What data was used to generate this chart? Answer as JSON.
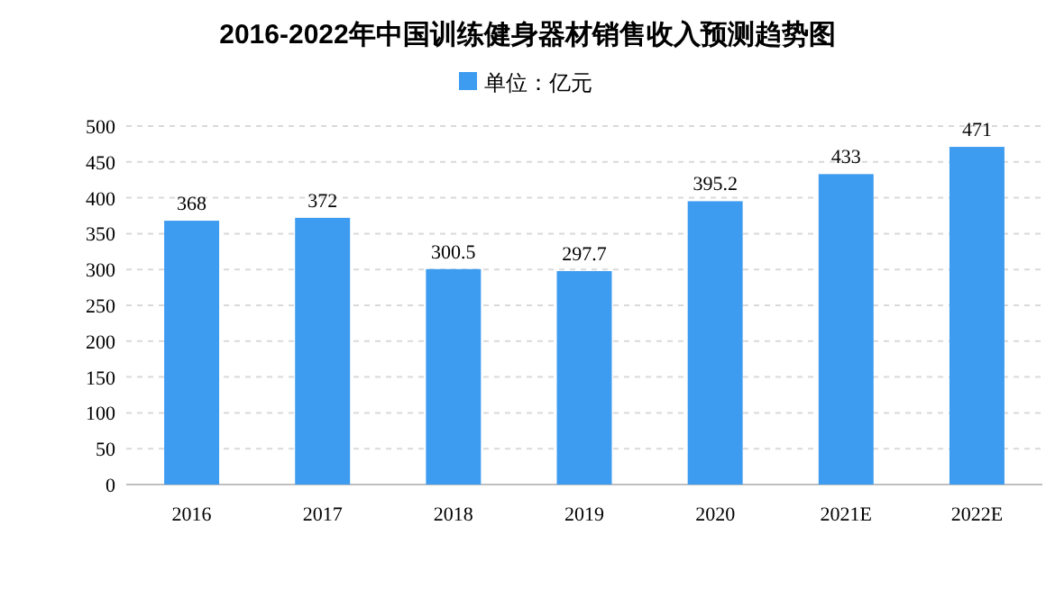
{
  "chart_data": {
    "type": "bar",
    "title": "2016-2022年中国训练健身器材销售收入预测趋势图",
    "categories": [
      "2016",
      "2017",
      "2018",
      "2019",
      "2020",
      "2021E",
      "2022E"
    ],
    "series": [
      {
        "name": "单位：亿元",
        "color": "#3d9bf0",
        "values": [
          368,
          372,
          300.5,
          297.7,
          395.2,
          433,
          471
        ]
      }
    ],
    "ylim": [
      0,
      500
    ],
    "yticks": [
      0,
      50,
      100,
      150,
      200,
      250,
      300,
      350,
      400,
      450,
      500
    ],
    "grid": "y",
    "legend": "top",
    "data_labels": true
  }
}
